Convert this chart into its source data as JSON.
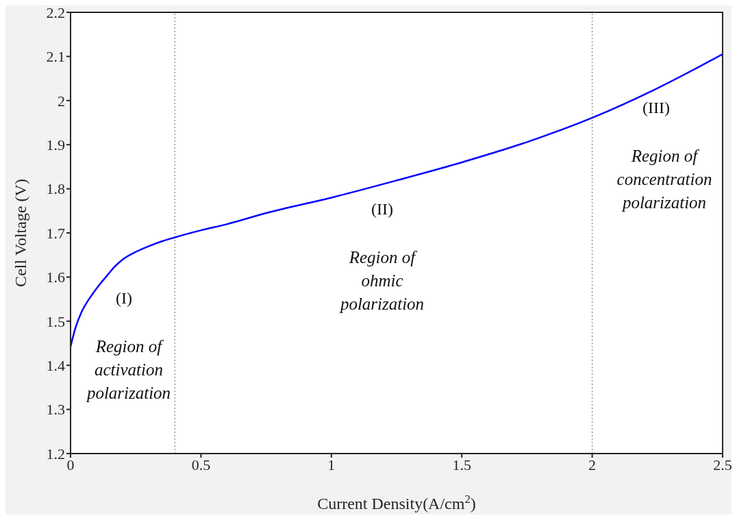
{
  "chart_data": {
    "type": "line",
    "xlabel": "Current Density(A/cm$^{2}$)",
    "ylabel": "Cell Voltage (V)",
    "x": [
      0,
      0.01,
      0.02,
      0.04,
      0.06,
      0.08,
      0.11,
      0.141,
      0.17,
      0.2,
      0.25,
      0.3,
      0.35,
      0.4,
      0.5,
      0.6,
      0.75,
      1.0,
      1.25,
      1.5,
      1.75,
      2.0,
      2.25,
      2.5
    ],
    "series": [
      {
        "color": "#0000ff",
        "values": [
          1.442,
          1.466,
          1.487,
          1.518,
          1.54,
          1.558,
          1.582,
          1.604,
          1.624,
          1.64,
          1.657,
          1.67,
          1.681,
          1.69,
          1.706,
          1.72,
          1.745,
          1.78,
          1.819,
          1.86,
          1.906,
          1.961,
          2.028,
          2.105
        ]
      }
    ],
    "xlim": [
      0,
      2.5
    ],
    "xticks": [
      0,
      0.5,
      1,
      1.5,
      2,
      2.5
    ],
    "ylim": [
      1.2,
      2.2
    ],
    "yticks": [
      1.2,
      1.3,
      1.4,
      1.5,
      1.6,
      1.7,
      1.8,
      1.9,
      2,
      2.1,
      2.2
    ],
    "marker": "none",
    "line_style": "solid",
    "ref_lines": [
      {
        "axis": "x",
        "value": 0.4,
        "color": "#999999",
        "line_style": "dotted"
      },
      {
        "axis": "x",
        "value": 2,
        "color": "#999999",
        "line_style": "dotted"
      }
    ],
    "annotations": [
      "(I)",
      "Region of\nactivation\npolarization",
      "(II)",
      "Region of\nohmic\npolarization",
      "(III)",
      "Region of\nconcentration\npolarization"
    ]
  }
}
